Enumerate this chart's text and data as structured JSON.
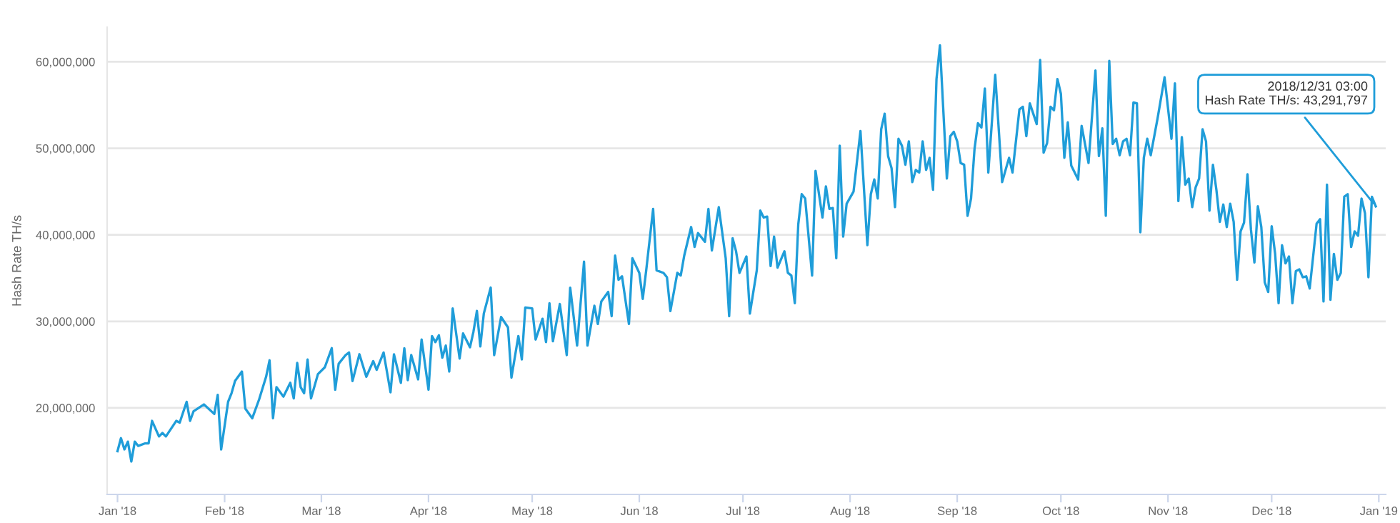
{
  "chart_data": {
    "type": "line",
    "ylabel": "Hash Rate TH/s",
    "xlim": [
      "2017-12-29",
      "2019-01-03"
    ],
    "xticks": [
      {
        "value": "2018-01-01",
        "label": "Jan '18"
      },
      {
        "value": "2018-02-01",
        "label": "Feb '18"
      },
      {
        "value": "2018-03-01",
        "label": "Mar '18"
      },
      {
        "value": "2018-04-01",
        "label": "Apr '18"
      },
      {
        "value": "2018-05-01",
        "label": "May '18"
      },
      {
        "value": "2018-06-01",
        "label": "Jun '18"
      },
      {
        "value": "2018-07-01",
        "label": "Jul '18"
      },
      {
        "value": "2018-08-01",
        "label": "Aug '18"
      },
      {
        "value": "2018-09-01",
        "label": "Sep '18"
      },
      {
        "value": "2018-10-01",
        "label": "Oct '18"
      },
      {
        "value": "2018-11-01",
        "label": "Nov '18"
      },
      {
        "value": "2018-12-01",
        "label": "Dec '18"
      },
      {
        "value": "2019-01-01",
        "label": "Jan '19"
      }
    ],
    "ylim": [
      10000000,
      64000000
    ],
    "yticks": [
      {
        "value": 20000000,
        "label": "20,000,000"
      },
      {
        "value": 30000000,
        "label": "30,000,000"
      },
      {
        "value": 40000000,
        "label": "40,000,000"
      },
      {
        "value": 50000000,
        "label": "50,000,000"
      },
      {
        "value": 60000000,
        "label": "60,000,000"
      }
    ],
    "grid": "y",
    "annotations": [
      {
        "text": "2018/12/31 03:00\nHash Rate TH/s: 43,291,797",
        "x": "2018-12-31T03:00",
        "y": 43291797
      }
    ],
    "x": [
      "2018-01-01",
      "2018-01-02",
      "2018-01-03",
      "2018-01-04",
      "2018-01-05",
      "2018-01-06",
      "2018-01-07",
      "2018-01-09",
      "2018-01-10",
      "2018-01-11",
      "2018-01-13",
      "2018-01-14",
      "2018-01-15",
      "2018-01-18",
      "2018-01-19",
      "2018-01-21",
      "2018-01-22",
      "2018-01-23",
      "2018-01-26",
      "2018-01-29",
      "2018-01-30",
      "2018-01-31",
      "2018-02-02",
      "2018-02-03",
      "2018-02-04",
      "2018-02-06",
      "2018-02-07",
      "2018-02-09",
      "2018-02-11",
      "2018-02-13",
      "2018-02-14",
      "2018-02-15",
      "2018-02-16",
      "2018-02-18",
      "2018-02-20",
      "2018-02-21",
      "2018-02-22",
      "2018-02-23",
      "2018-02-24",
      "2018-02-25",
      "2018-02-26",
      "2018-02-28",
      "2018-03-02",
      "2018-03-04",
      "2018-03-05",
      "2018-03-06",
      "2018-03-08",
      "2018-03-09",
      "2018-03-10",
      "2018-03-12",
      "2018-03-14",
      "2018-03-16",
      "2018-03-17",
      "2018-03-19",
      "2018-03-21",
      "2018-03-22",
      "2018-03-24",
      "2018-03-25",
      "2018-03-26",
      "2018-03-27",
      "2018-03-29",
      "2018-03-30",
      "2018-04-01",
      "2018-04-02",
      "2018-04-03",
      "2018-04-04",
      "2018-04-05",
      "2018-04-06",
      "2018-04-07",
      "2018-04-08",
      "2018-04-10",
      "2018-04-11",
      "2018-04-13",
      "2018-04-14",
      "2018-04-15",
      "2018-04-16",
      "2018-04-17",
      "2018-04-19",
      "2018-04-20",
      "2018-04-22",
      "2018-04-24",
      "2018-04-25",
      "2018-04-27",
      "2018-04-28",
      "2018-04-29",
      "2018-05-01",
      "2018-05-02",
      "2018-05-04",
      "2018-05-05",
      "2018-05-06",
      "2018-05-07",
      "2018-05-09",
      "2018-05-11",
      "2018-05-12",
      "2018-05-14",
      "2018-05-16",
      "2018-05-17",
      "2018-05-19",
      "2018-05-20",
      "2018-05-21",
      "2018-05-23",
      "2018-05-24",
      "2018-05-25",
      "2018-05-26",
      "2018-05-27",
      "2018-05-29",
      "2018-05-30",
      "2018-06-01",
      "2018-06-02",
      "2018-06-03",
      "2018-06-05",
      "2018-06-06",
      "2018-06-08",
      "2018-06-09",
      "2018-06-10",
      "2018-06-12",
      "2018-06-13",
      "2018-06-14",
      "2018-06-16",
      "2018-06-17",
      "2018-06-18",
      "2018-06-20",
      "2018-06-21",
      "2018-06-22",
      "2018-06-24",
      "2018-06-26",
      "2018-06-27",
      "2018-06-28",
      "2018-06-29",
      "2018-06-30",
      "2018-07-02",
      "2018-07-03",
      "2018-07-05",
      "2018-07-06",
      "2018-07-07",
      "2018-07-08",
      "2018-07-09",
      "2018-07-10",
      "2018-07-11",
      "2018-07-13",
      "2018-07-14",
      "2018-07-15",
      "2018-07-16",
      "2018-07-17",
      "2018-07-18",
      "2018-07-19",
      "2018-07-21",
      "2018-07-22",
      "2018-07-24",
      "2018-07-25",
      "2018-07-26",
      "2018-07-27",
      "2018-07-28",
      "2018-07-29",
      "2018-07-30",
      "2018-07-31",
      "2018-08-02",
      "2018-08-04",
      "2018-08-06",
      "2018-08-07",
      "2018-08-08",
      "2018-08-09",
      "2018-08-10",
      "2018-08-11",
      "2018-08-12",
      "2018-08-13",
      "2018-08-14",
      "2018-08-15",
      "2018-08-16",
      "2018-08-17",
      "2018-08-18",
      "2018-08-19",
      "2018-08-20",
      "2018-08-21",
      "2018-08-22",
      "2018-08-23",
      "2018-08-24",
      "2018-08-25",
      "2018-08-26",
      "2018-08-27",
      "2018-08-29",
      "2018-08-30",
      "2018-08-31",
      "2018-09-01",
      "2018-09-02",
      "2018-09-03",
      "2018-09-04",
      "2018-09-05",
      "2018-09-06",
      "2018-09-07",
      "2018-09-08",
      "2018-09-09",
      "2018-09-10",
      "2018-09-12",
      "2018-09-14",
      "2018-09-16",
      "2018-09-17",
      "2018-09-19",
      "2018-09-20",
      "2018-09-21",
      "2018-09-22",
      "2018-09-24",
      "2018-09-25",
      "2018-09-26",
      "2018-09-27",
      "2018-09-28",
      "2018-09-29",
      "2018-09-30",
      "2018-10-01",
      "2018-10-02",
      "2018-10-03",
      "2018-10-04",
      "2018-10-06",
      "2018-10-07",
      "2018-10-09",
      "2018-10-11",
      "2018-10-12",
      "2018-10-13",
      "2018-10-14",
      "2018-10-15",
      "2018-10-16",
      "2018-10-17",
      "2018-10-18",
      "2018-10-19",
      "2018-10-20",
      "2018-10-21",
      "2018-10-22",
      "2018-10-23",
      "2018-10-24",
      "2018-10-25",
      "2018-10-26",
      "2018-10-27",
      "2018-10-29",
      "2018-10-31",
      "2018-11-02",
      "2018-11-03",
      "2018-11-04",
      "2018-11-05",
      "2018-11-06",
      "2018-11-07",
      "2018-11-08",
      "2018-11-09",
      "2018-11-10",
      "2018-11-11",
      "2018-11-12",
      "2018-11-13",
      "2018-11-14",
      "2018-11-15",
      "2018-11-16",
      "2018-11-17",
      "2018-11-18",
      "2018-11-19",
      "2018-11-20",
      "2018-11-21",
      "2018-11-22",
      "2018-11-23",
      "2018-11-24",
      "2018-11-25",
      "2018-11-26",
      "2018-11-27",
      "2018-11-28",
      "2018-11-29",
      "2018-11-30",
      "2018-12-01",
      "2018-12-02",
      "2018-12-03",
      "2018-12-04",
      "2018-12-05",
      "2018-12-06",
      "2018-12-07",
      "2018-12-08",
      "2018-12-09",
      "2018-12-10",
      "2018-12-11",
      "2018-12-12",
      "2018-12-13",
      "2018-12-14",
      "2018-12-15",
      "2018-12-16",
      "2018-12-17",
      "2018-12-18",
      "2018-12-19",
      "2018-12-20",
      "2018-12-21",
      "2018-12-22",
      "2018-12-23",
      "2018-12-24",
      "2018-12-25",
      "2018-12-26",
      "2018-12-27",
      "2018-12-28",
      "2018-12-29",
      "2018-12-30",
      "2018-12-31T03:00"
    ],
    "series": [
      {
        "color": "#1f9dd9",
        "values": [
          15000000.0,
          16500000.0,
          15200000.0,
          16100000.0,
          13800000.0,
          16100000.0,
          15600000.0,
          15900000.0,
          15900000.0,
          18500000.0,
          16700000.0,
          17100000.0,
          16700000.0,
          18500000.0,
          18300000.0,
          20700000.0,
          18500000.0,
          19600000.0,
          20400000.0,
          19300000.0,
          21500000.0,
          15200000.0,
          20700000.0,
          21700000.0,
          23100000.0,
          24200000.0,
          19900000.0,
          18800000.0,
          21000000.0,
          23600000.0,
          25500000.0,
          18800000.0,
          22400000.0,
          21300000.0,
          22900000.0,
          21100000.0,
          25200000.0,
          22400000.0,
          21700000.0,
          25600000.0,
          21100000.0,
          23900000.0,
          24700000.0,
          26900000.0,
          22100000.0,
          25100000.0,
          26100000.0,
          26400000.0,
          23100000.0,
          26200000.0,
          23600000.0,
          25400000.0,
          24400000.0,
          26400000.0,
          21800000.0,
          26200000.0,
          22900000.0,
          26900000.0,
          23200000.0,
          26100000.0,
          23300000.0,
          27900000.0,
          22100000.0,
          28300000.0,
          27600000.0,
          28400000.0,
          25800000.0,
          27200000.0,
          24200000.0,
          31500000.0,
          25700000.0,
          28600000.0,
          27000000.0,
          28800000.0,
          31200000.0,
          27100000.0,
          30900000.0,
          33900000.0,
          26100000.0,
          30500000.0,
          29300000.0,
          23500000.0,
          28300000.0,
          25600000.0,
          31600000.0,
          31500000.0,
          27900000.0,
          30300000.0,
          27600000.0,
          32100000.0,
          27700000.0,
          32000000.0,
          26100000.0,
          33900000.0,
          27200000.0,
          36900000.0,
          27200000.0,
          31800000.0,
          29700000.0,
          32300000.0,
          33400000.0,
          30600000.0,
          37600000.0,
          34800000.0,
          35200000.0,
          29700000.0,
          37300000.0,
          35600000.0,
          32600000.0,
          35900000.0,
          43000000.0,
          35900000.0,
          35600000.0,
          35100000.0,
          31200000.0,
          35600000.0,
          35300000.0,
          37600000.0,
          40900000.0,
          38600000.0,
          40200000.0,
          39200000.0,
          43000000.0,
          38200000.0,
          43200000.0,
          37300000.0,
          30600000.0,
          39600000.0,
          38100000.0,
          35600000.0,
          37500000.0,
          30900000.0,
          35900000.0,
          42800000.0,
          42000000.0,
          42100000.0,
          36400000.0,
          39800000.0,
          36200000.0,
          38100000.0,
          35600000.0,
          35300000.0,
          32100000.0,
          41200000.0,
          44700000.0,
          44200000.0,
          35300000.0,
          47400000.0,
          42000000.0,
          45600000.0,
          43000000.0,
          43100000.0,
          37300000.0,
          50300000.0,
          39800000.0,
          43600000.0,
          45000000.0,
          52000000.0,
          38800000.0,
          44700000.0,
          46400000.0,
          44200000.0,
          52200000.0,
          54000000.0,
          49100000.0,
          47700000.0,
          43200000.0,
          51100000.0,
          50300000.0,
          48100000.0,
          50800000.0,
          46100000.0,
          47500000.0,
          47200000.0,
          50800000.0,
          47500000.0,
          48900000.0,
          45200000.0,
          58000000.0,
          61900000.0,
          46500000.0,
          51400000.0,
          51900000.0,
          50800000.0,
          48300000.0,
          48100000.0,
          42200000.0,
          44200000.0,
          49900000.0,
          52900000.0,
          52400000.0,
          56900000.0,
          47200000.0,
          58500000.0,
          46100000.0,
          48900000.0,
          47200000.0,
          54500000.0,
          54800000.0,
          51400000.0,
          55200000.0,
          52800000.0,
          60200000.0,
          49500000.0,
          50600000.0,
          54800000.0,
          54400000.0,
          58000000.0,
          56300000.0,
          48900000.0,
          53000000.0,
          48000000.0,
          46400000.0,
          52600000.0,
          48300000.0,
          59000000.0,
          49100000.0,
          52300000.0,
          42200000.0,
          60100000.0,
          50500000.0,
          51100000.0,
          49200000.0,
          50800000.0,
          51100000.0,
          49200000.0,
          55300000.0,
          55200000.0,
          40300000.0,
          48900000.0,
          51100000.0,
          49200000.0,
          53500000.0,
          58200000.0,
          51100000.0,
          57500000.0,
          43900000.0,
          51300000.0,
          45800000.0,
          46500000.0,
          43200000.0,
          45500000.0,
          46500000.0,
          52200000.0,
          50800000.0,
          42800000.0,
          48100000.0,
          45200000.0,
          41500000.0,
          43500000.0,
          40900000.0,
          43600000.0,
          41500000.0,
          34800000.0,
          40400000.0,
          41400000.0,
          47000000.0,
          40600000.0,
          36800000.0,
          43300000.0,
          40900000.0,
          34500000.0,
          33400000.0,
          41000000.0,
          37800000.0,
          32100000.0,
          38800000.0,
          36700000.0,
          37500000.0,
          32100000.0,
          35800000.0,
          36000000.0,
          35100000.0,
          35200000.0,
          33800000.0,
          37500000.0,
          41300000.0,
          41800000.0,
          32300000.0,
          45800000.0,
          32500000.0,
          37800000.0,
          34800000.0,
          35600000.0,
          44400000.0,
          44700000.0,
          38600000.0,
          40400000.0,
          39900000.0,
          44200000.0,
          42500000.0,
          35100000.0,
          44400000.0,
          43291797
        ]
      }
    ]
  }
}
